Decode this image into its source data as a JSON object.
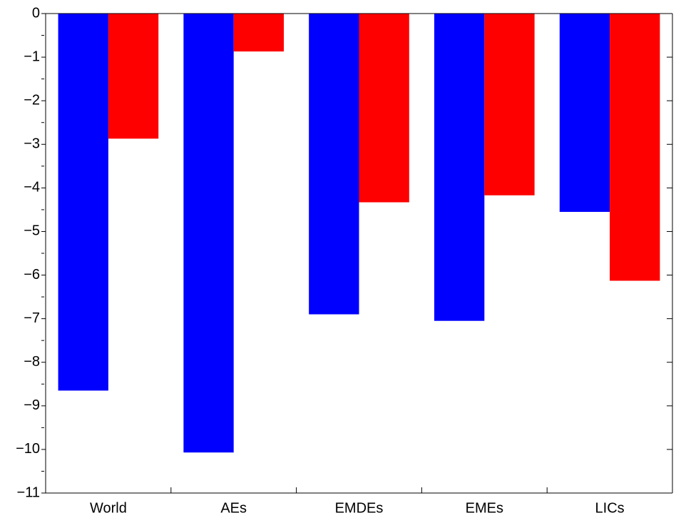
{
  "chart_data": {
    "type": "bar",
    "categories": [
      "World",
      "AEs",
      "EMDEs",
      "EMEs",
      "LICs"
    ],
    "series": [
      {
        "color": "#0000ff",
        "values": [
          -8.65,
          -10.07,
          -6.9,
          -7.05,
          -4.55
        ]
      },
      {
        "color": "#ff0000",
        "values": [
          -2.87,
          -0.87,
          -4.33,
          -4.17,
          -6.13
        ]
      }
    ],
    "ylim": [
      -11,
      0
    ],
    "yticks": [
      0,
      {
        "value": -1,
        "label": "−1"
      },
      {
        "value": -2,
        "label": "−2"
      },
      {
        "value": -3,
        "label": "−3"
      },
      {
        "value": -4,
        "label": "−4"
      },
      {
        "value": -5,
        "label": "−5"
      },
      {
        "value": -6,
        "label": "−6"
      },
      {
        "value": -7,
        "label": "−7"
      },
      {
        "value": -8,
        "label": "−8"
      },
      {
        "value": -9,
        "label": "−9"
      },
      {
        "value": -10,
        "label": "−10"
      },
      {
        "value": -11,
        "label": "−11"
      }
    ],
    "yminorticks": [
      -0.5,
      -1.5,
      -2.5,
      -3.5,
      -4.5,
      -5.5,
      -6.5,
      -7.5,
      -8.5,
      -9.5,
      -10.5
    ],
    "grid": false
  }
}
